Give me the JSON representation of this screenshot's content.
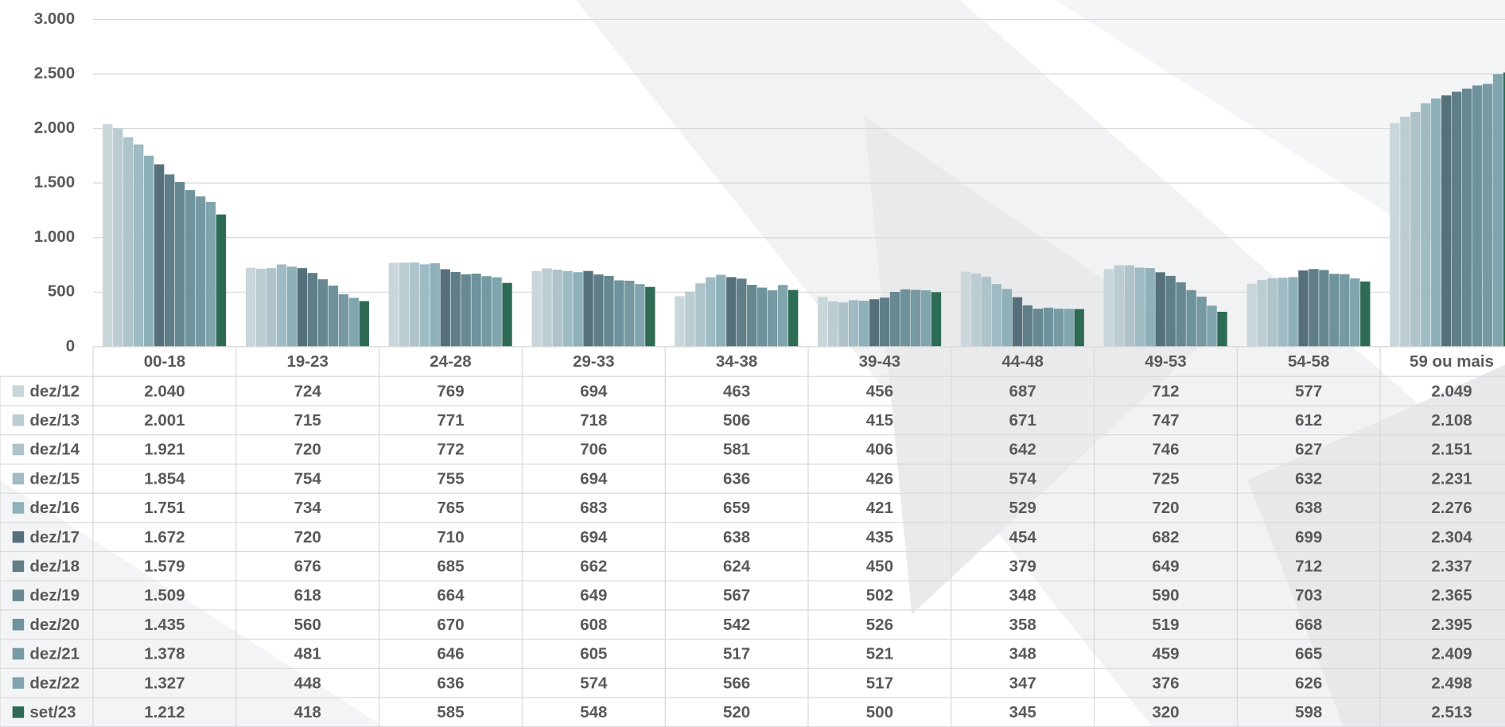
{
  "chart_data": {
    "type": "bar",
    "categories": [
      "00-18",
      "19-23",
      "24-28",
      "29-33",
      "34-38",
      "39-43",
      "44-48",
      "49-53",
      "54-58",
      "59 ou mais"
    ],
    "ylim": [
      0,
      3000
    ],
    "yticks": [
      0,
      500,
      {
        "value": 1000,
        "label": "1.000"
      },
      {
        "value": 1500,
        "label": "1.500"
      },
      {
        "value": 2000,
        "label": "2.000"
      },
      {
        "value": 2500,
        "label": "2.500"
      },
      {
        "value": 3000,
        "label": "3.000"
      }
    ],
    "grid": true,
    "series": [
      {
        "name": "dez/12",
        "color": "#c9d6da",
        "values": [
          2040,
          724,
          769,
          694,
          463,
          456,
          687,
          712,
          577,
          2049
        ],
        "value_labels": [
          "2.040",
          "724",
          "769",
          "694",
          "463",
          "456",
          "687",
          "712",
          "577",
          "2.049"
        ]
      },
      {
        "name": "dez/13",
        "color": "#bccdd2",
        "values": [
          2001,
          715,
          771,
          718,
          506,
          415,
          671,
          747,
          612,
          2108
        ],
        "value_labels": [
          "2.001",
          "715",
          "771",
          "718",
          "506",
          "415",
          "671",
          "747",
          "612",
          "2.108"
        ]
      },
      {
        "name": "dez/14",
        "color": "#aec4ca",
        "values": [
          1921,
          720,
          772,
          706,
          581,
          406,
          642,
          746,
          627,
          2151
        ],
        "value_labels": [
          "1.921",
          "720",
          "772",
          "706",
          "581",
          "406",
          "642",
          "746",
          "627",
          "2.151"
        ]
      },
      {
        "name": "dez/15",
        "color": "#9fbbc3",
        "values": [
          1854,
          754,
          755,
          694,
          636,
          426,
          574,
          725,
          632,
          2231
        ],
        "value_labels": [
          "1.854",
          "754",
          "755",
          "694",
          "636",
          "426",
          "574",
          "725",
          "632",
          "2.231"
        ]
      },
      {
        "name": "dez/16",
        "color": "#8eb0b9",
        "values": [
          1751,
          734,
          765,
          683,
          659,
          421,
          529,
          720,
          638,
          2276
        ],
        "value_labels": [
          "1.751",
          "734",
          "765",
          "683",
          "659",
          "421",
          "529",
          "720",
          "638",
          "2.276"
        ]
      },
      {
        "name": "dez/17",
        "color": "#55707a",
        "values": [
          1672,
          720,
          710,
          694,
          638,
          435,
          454,
          682,
          699,
          2304
        ],
        "value_labels": [
          "1.672",
          "720",
          "710",
          "694",
          "638",
          "435",
          "454",
          "682",
          "699",
          "2.304"
        ]
      },
      {
        "name": "dez/18",
        "color": "#5f7e87",
        "values": [
          1579,
          676,
          685,
          662,
          624,
          450,
          379,
          649,
          712,
          2337
        ],
        "value_labels": [
          "1.579",
          "676",
          "685",
          "662",
          "624",
          "450",
          "379",
          "649",
          "712",
          "2.337"
        ]
      },
      {
        "name": "dez/19",
        "color": "#678891",
        "values": [
          1509,
          618,
          664,
          649,
          567,
          502,
          348,
          590,
          703,
          2365
        ],
        "value_labels": [
          "1.509",
          "618",
          "664",
          "649",
          "567",
          "502",
          "348",
          "590",
          "703",
          "2.365"
        ]
      },
      {
        "name": "dez/20",
        "color": "#6f939c",
        "values": [
          1435,
          560,
          670,
          608,
          542,
          526,
          358,
          519,
          668,
          2395
        ],
        "value_labels": [
          "1.435",
          "560",
          "670",
          "608",
          "542",
          "526",
          "358",
          "519",
          "668",
          "2.395"
        ]
      },
      {
        "name": "dez/21",
        "color": "#7699a2",
        "values": [
          1378,
          481,
          646,
          605,
          517,
          521,
          348,
          459,
          665,
          2409
        ],
        "value_labels": [
          "1.378",
          "481",
          "646",
          "605",
          "517",
          "521",
          "348",
          "459",
          "665",
          "2.409"
        ]
      },
      {
        "name": "dez/22",
        "color": "#80a5ae",
        "values": [
          1327,
          448,
          636,
          574,
          566,
          517,
          347,
          376,
          626,
          2498
        ],
        "value_labels": [
          "1.327",
          "448",
          "636",
          "574",
          "566",
          "517",
          "347",
          "376",
          "626",
          "2.498"
        ]
      },
      {
        "name": "set/23",
        "color": "#2e6b55",
        "values": [
          1212,
          418,
          585,
          548,
          520,
          500,
          345,
          320,
          598,
          2513
        ],
        "value_labels": [
          "1.212",
          "418",
          "585",
          "548",
          "520",
          "500",
          "345",
          "320",
          "598",
          "2.513"
        ]
      }
    ]
  }
}
